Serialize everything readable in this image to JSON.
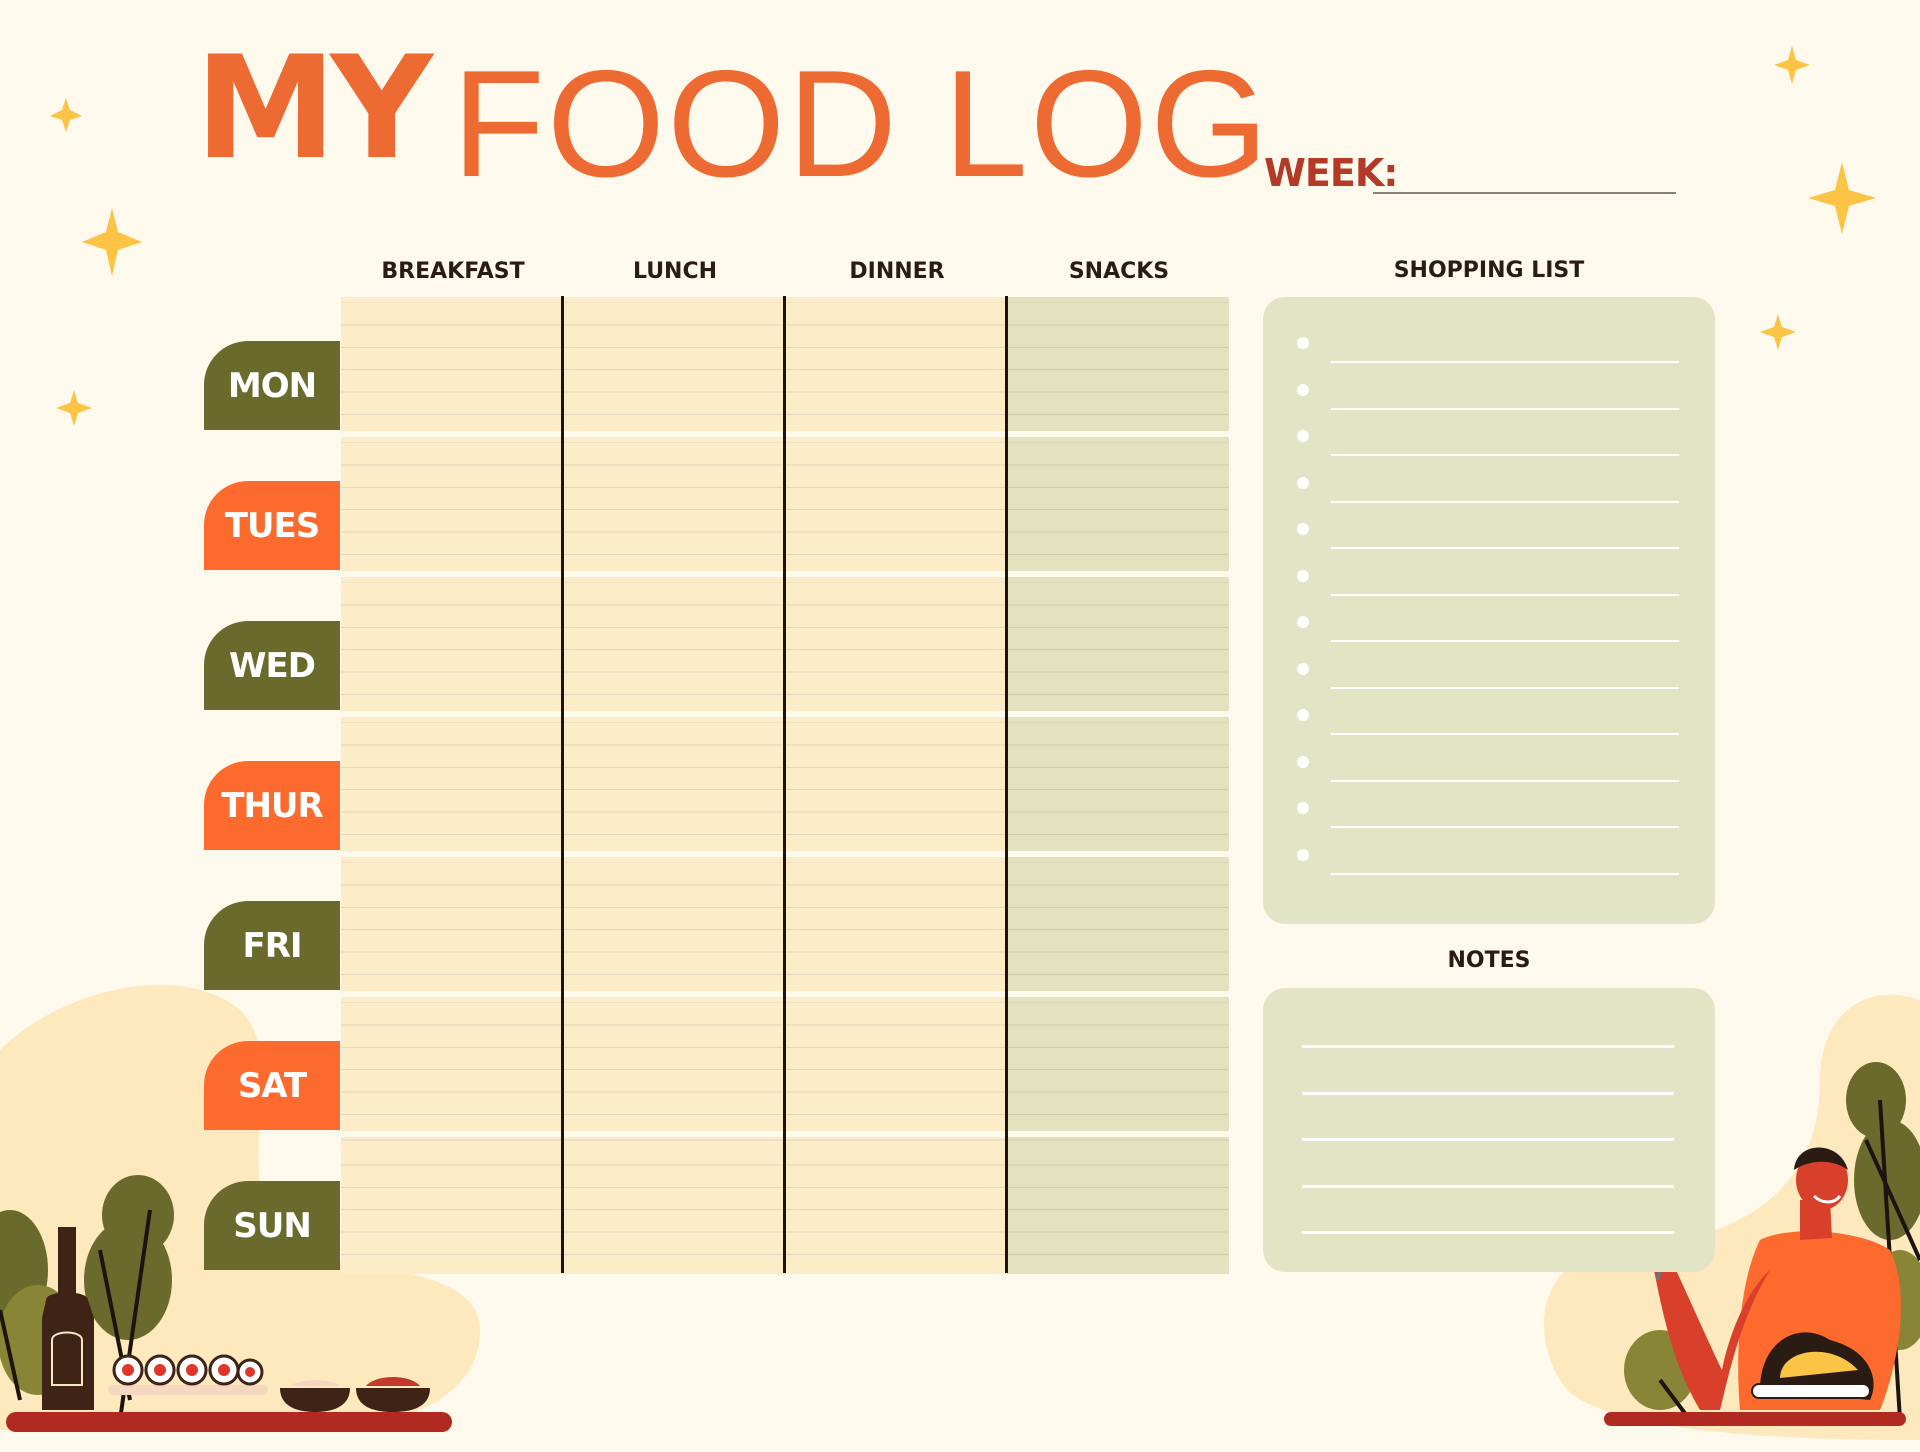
{
  "title": {
    "bold": "MY",
    "light": "FOOD LOG"
  },
  "week_label": "WEEK:",
  "columns": [
    "BREAKFAST",
    "LUNCH",
    "DINNER",
    "SNACKS"
  ],
  "days": [
    {
      "label": "MON",
      "color": "#6a6a2c"
    },
    {
      "label": "TUES",
      "color": "#fc6a2d"
    },
    {
      "label": "WED",
      "color": "#6a6a2c"
    },
    {
      "label": "THUR",
      "color": "#fc6a2d"
    },
    {
      "label": "FRI",
      "color": "#6a6a2c"
    },
    {
      "label": "SAT",
      "color": "#fc6a2d"
    },
    {
      "label": "SUN",
      "color": "#6a6a2c"
    }
  ],
  "shopping_list": {
    "heading": "SHOPPING LIST",
    "item_count": 12
  },
  "notes": {
    "heading": "NOTES",
    "line_count": 5
  },
  "colors": {
    "background": "#fdf9ed",
    "title": "#ee6a33",
    "week": "#b33a26",
    "olive": "#6a6a2c",
    "orange": "#fc6a2d",
    "meal_cell": "#fcecc8",
    "snack_cell": "#e2e2c0",
    "panel": "#e2e4c6"
  }
}
